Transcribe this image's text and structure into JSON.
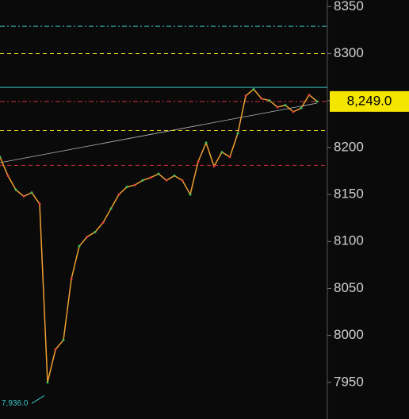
{
  "chart_data": {
    "type": "line",
    "values": [
      8190,
      8170,
      8155,
      8148,
      8152,
      8140,
      7950,
      7985,
      7995,
      8060,
      8095,
      8105,
      8110,
      8120,
      8135,
      8150,
      8158,
      8160,
      8165,
      8168,
      8172,
      8165,
      8170,
      8165,
      8150,
      8185,
      8205,
      8180,
      8195,
      8190,
      8215,
      8255,
      8262,
      8252,
      8250,
      8243,
      8245,
      8238,
      8242,
      8256,
      8249
    ],
    "color": "#f0a030",
    "ylim": [
      7911,
      8357
    ],
    "yticks": [
      7950,
      8000,
      8050,
      8100,
      8150,
      8200,
      8250,
      8300,
      8350
    ],
    "reference_lines": [
      {
        "value": 8329,
        "color": "#3cc8c8",
        "style": "dashdot"
      },
      {
        "value": 8300,
        "color": "#e0d020",
        "style": "dashed"
      },
      {
        "value": 8264,
        "color": "#3cc8c8",
        "style": "solid"
      },
      {
        "value": 8249,
        "color": "#d03040",
        "style": "dashdot"
      },
      {
        "value": 8218,
        "color": "#e0d020",
        "style": "dashed"
      },
      {
        "value": 8181,
        "color": "#d03040",
        "style": "dashed"
      }
    ],
    "last_price": {
      "value": 8249,
      "label": "8,249.0"
    },
    "low_marker": {
      "value": 7936,
      "label": "7,936.0"
    }
  }
}
